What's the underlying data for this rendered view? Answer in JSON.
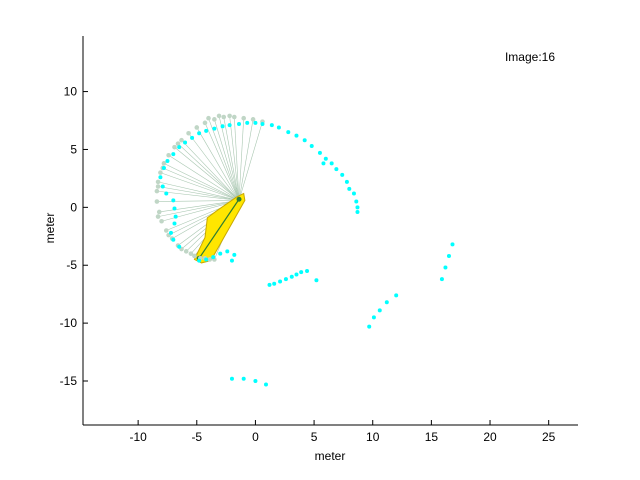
{
  "chart_data": {
    "type": "scatter",
    "annotation": "Image:16",
    "xlabel": "meter",
    "ylabel": "meter",
    "xlim": [
      -14.7,
      27.5
    ],
    "ylim": [
      -18.8,
      14.8
    ],
    "xticks": [
      -10,
      -5,
      0,
      5,
      10,
      15,
      20,
      25
    ],
    "yticks": [
      10,
      5,
      0,
      -5,
      -10,
      -15
    ],
    "grid": false,
    "colors": {
      "scan": "#00ffff",
      "arc": "#c0d6c6",
      "ray": "#a9c7b1",
      "robot_fill": "#ffe600",
      "robot_edge": "#c9a800",
      "heading": "#2e7d32"
    },
    "sensor_origin": [
      -1.4,
      0.6
    ],
    "arc": [
      [
        -4.3,
        -4.4
      ],
      [
        -5.2,
        -4.2
      ],
      [
        -5.9,
        -3.8
      ],
      [
        -6.6,
        -3.3
      ],
      [
        -7.1,
        -2.7
      ],
      [
        -7.6,
        -2.0
      ],
      [
        -8.0,
        -1.2
      ],
      [
        -8.2,
        -0.4
      ],
      [
        -8.4,
        0.5
      ],
      [
        -8.4,
        1.4
      ],
      [
        -8.3,
        2.2
      ],
      [
        -8.1,
        3.0
      ],
      [
        -7.8,
        3.8
      ],
      [
        -7.4,
        4.5
      ],
      [
        -6.9,
        5.2
      ],
      [
        -6.3,
        5.8
      ],
      [
        -5.7,
        6.4
      ],
      [
        -5.0,
        6.9
      ],
      [
        -4.3,
        7.3
      ],
      [
        -3.5,
        7.6
      ],
      [
        -2.7,
        7.8
      ],
      [
        -1.8,
        7.8
      ],
      [
        -1.0,
        7.7
      ],
      [
        -0.2,
        7.6
      ],
      [
        0.6,
        7.4
      ],
      [
        -4.0,
        7.7
      ],
      [
        -3.1,
        7.9
      ],
      [
        -2.2,
        7.9
      ],
      [
        -6.6,
        5.5
      ],
      [
        -7.9,
        3.4
      ],
      [
        -8.3,
        1.8
      ],
      [
        -8.3,
        -0.8
      ],
      [
        -7.4,
        -2.4
      ],
      [
        -6.3,
        -3.6
      ],
      [
        -5.5,
        -4.0
      ],
      [
        -4.7,
        -4.4
      ],
      [
        -3.9,
        -4.5
      ],
      [
        -3.5,
        -4.5
      ]
    ],
    "scan_points": [
      [
        -4.8,
        -4.6
      ],
      [
        -4.2,
        -4.5
      ],
      [
        -3.6,
        -4.3
      ],
      [
        -3.0,
        -4.0
      ],
      [
        -2.4,
        -3.8
      ],
      [
        -2.0,
        -4.6
      ],
      [
        -1.8,
        -4.1
      ],
      [
        -6.5,
        -3.4
      ],
      [
        -7.0,
        -2.8
      ],
      [
        -7.2,
        -2.2
      ],
      [
        -6.9,
        -1.4
      ],
      [
        -6.8,
        -0.8
      ],
      [
        -6.9,
        -0.1
      ],
      [
        -7.0,
        0.6
      ],
      [
        -7.6,
        1.2
      ],
      [
        -7.9,
        1.8
      ],
      [
        -8.1,
        2.6
      ],
      [
        -7.8,
        3.4
      ],
      [
        -7.5,
        4.0
      ],
      [
        -7.0,
        4.6
      ],
      [
        -6.5,
        5.2
      ],
      [
        -6.0,
        5.6
      ],
      [
        -5.4,
        6.0
      ],
      [
        -4.8,
        6.4
      ],
      [
        -4.2,
        6.6
      ],
      [
        -3.5,
        6.8
      ],
      [
        -2.8,
        7.0
      ],
      [
        -2.2,
        7.1
      ],
      [
        -1.4,
        7.2
      ],
      [
        -0.7,
        7.3
      ],
      [
        0.0,
        7.3
      ],
      [
        0.6,
        7.2
      ],
      [
        1.4,
        7.1
      ],
      [
        2.0,
        6.9
      ],
      [
        2.8,
        6.5
      ],
      [
        3.5,
        6.2
      ],
      [
        4.2,
        5.8
      ],
      [
        4.8,
        5.3
      ],
      [
        5.5,
        4.7
      ],
      [
        6.0,
        4.2
      ],
      [
        6.5,
        3.8
      ],
      [
        6.9,
        3.3
      ],
      [
        7.4,
        2.8
      ],
      [
        7.8,
        2.2
      ],
      [
        8.0,
        1.6
      ],
      [
        8.4,
        1.2
      ],
      [
        8.6,
        0.5
      ],
      [
        8.7,
        0.0
      ],
      [
        8.7,
        -0.4
      ],
      [
        5.8,
        3.8
      ],
      [
        1.2,
        -6.7
      ],
      [
        1.6,
        -6.6
      ],
      [
        2.1,
        -6.4
      ],
      [
        2.6,
        -6.2
      ],
      [
        3.1,
        -6.0
      ],
      [
        3.5,
        -5.8
      ],
      [
        3.9,
        -5.6
      ],
      [
        4.4,
        -5.5
      ],
      [
        5.2,
        -6.3
      ],
      [
        9.7,
        -10.3
      ],
      [
        10.1,
        -9.5
      ],
      [
        10.6,
        -8.9
      ],
      [
        11.2,
        -8.2
      ],
      [
        12.0,
        -7.6
      ],
      [
        15.9,
        -6.2
      ],
      [
        16.2,
        -5.2
      ],
      [
        16.5,
        -4.2
      ],
      [
        16.8,
        -3.2
      ],
      [
        -2.0,
        -14.8
      ],
      [
        -1.0,
        -14.8
      ],
      [
        0.0,
        -15.0
      ],
      [
        0.9,
        -15.3
      ]
    ],
    "robot_polygon": [
      [
        -1.6,
        0.9
      ],
      [
        -1.0,
        1.2
      ],
      [
        -0.9,
        0.6
      ],
      [
        -3.8,
        -4.6
      ],
      [
        -4.6,
        -4.8
      ],
      [
        -5.2,
        -4.5
      ],
      [
        -4.3,
        -2.6
      ],
      [
        -4.1,
        -0.9
      ],
      [
        -3.3,
        -0.3
      ]
    ],
    "heading_line": [
      [
        -4.8,
        -4.4
      ],
      [
        -1.4,
        0.7
      ]
    ]
  }
}
